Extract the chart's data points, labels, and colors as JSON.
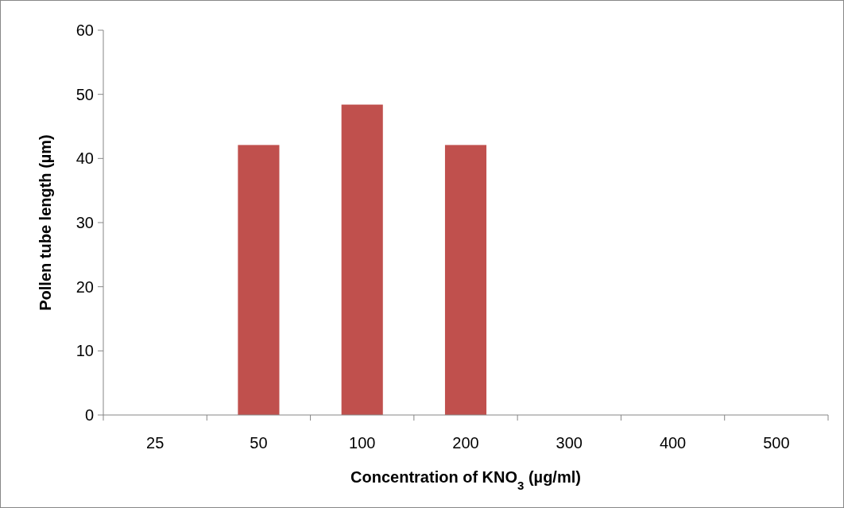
{
  "chart_data": {
    "type": "bar",
    "xlabel": "Concentration of KNO$_{3}$ (µg/ml)",
    "ylabel": "Pollen tube length (µm)",
    "categories": [
      "25",
      "50",
      "100",
      "200",
      "300",
      "400",
      "500"
    ],
    "values": [
      0,
      42.1,
      48.4,
      42.1,
      0,
      0,
      0
    ],
    "color": "#c0504d",
    "ylim": [
      0,
      60
    ],
    "yticks": [
      0,
      10,
      20,
      30,
      40,
      50,
      60
    ],
    "grid": false
  }
}
